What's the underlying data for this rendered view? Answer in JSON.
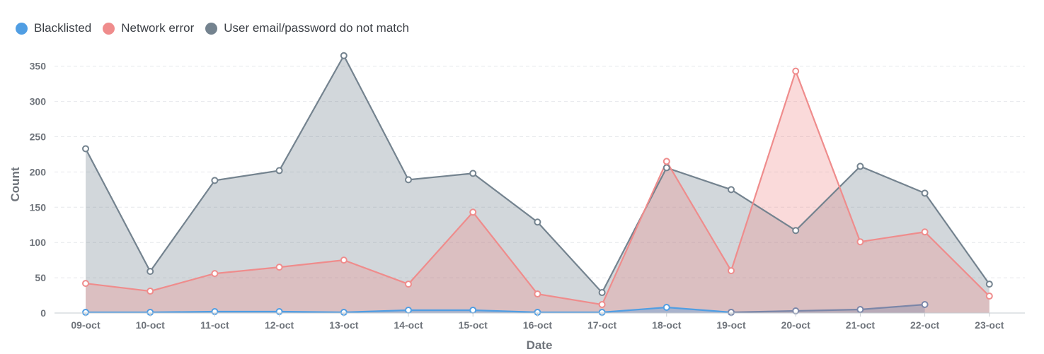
{
  "chart_data": {
    "type": "area",
    "xlabel": "Date",
    "ylabel": "Count",
    "ylim": [
      0,
      375
    ],
    "yticks": [
      0,
      50,
      100,
      150,
      200,
      250,
      300,
      350
    ],
    "grid": "horizontal dashed",
    "legend_placement": "top-left",
    "categories": [
      "09-oct",
      "10-oct",
      "11-oct",
      "12-oct",
      "13-oct",
      "14-oct",
      "15-oct",
      "16-oct",
      "17-oct",
      "18-oct",
      "19-oct",
      "20-oct",
      "21-oct",
      "22-oct",
      "23-oct"
    ],
    "series": [
      {
        "name": "Blacklisted",
        "color": "#509ee3",
        "values": [
          1,
          1,
          2,
          2,
          1,
          4,
          4,
          1,
          1,
          8,
          1,
          null,
          null,
          null,
          null
        ]
      },
      {
        "name": "Network error",
        "color": "#ef8c8c",
        "values": [
          42,
          31,
          56,
          65,
          75,
          41,
          143,
          27,
          12,
          215,
          60,
          343,
          101,
          115,
          24
        ]
      },
      {
        "name": "User email/password do not match",
        "color": "#74838f",
        "values": [
          233,
          59,
          188,
          202,
          365,
          189,
          198,
          129,
          29,
          206,
          175,
          117,
          208,
          170,
          41
        ]
      },
      {
        "name": "",
        "color": "#7b86a8",
        "values": [
          null,
          null,
          null,
          null,
          null,
          null,
          null,
          null,
          null,
          null,
          1,
          3,
          5,
          12,
          null
        ]
      }
    ]
  }
}
